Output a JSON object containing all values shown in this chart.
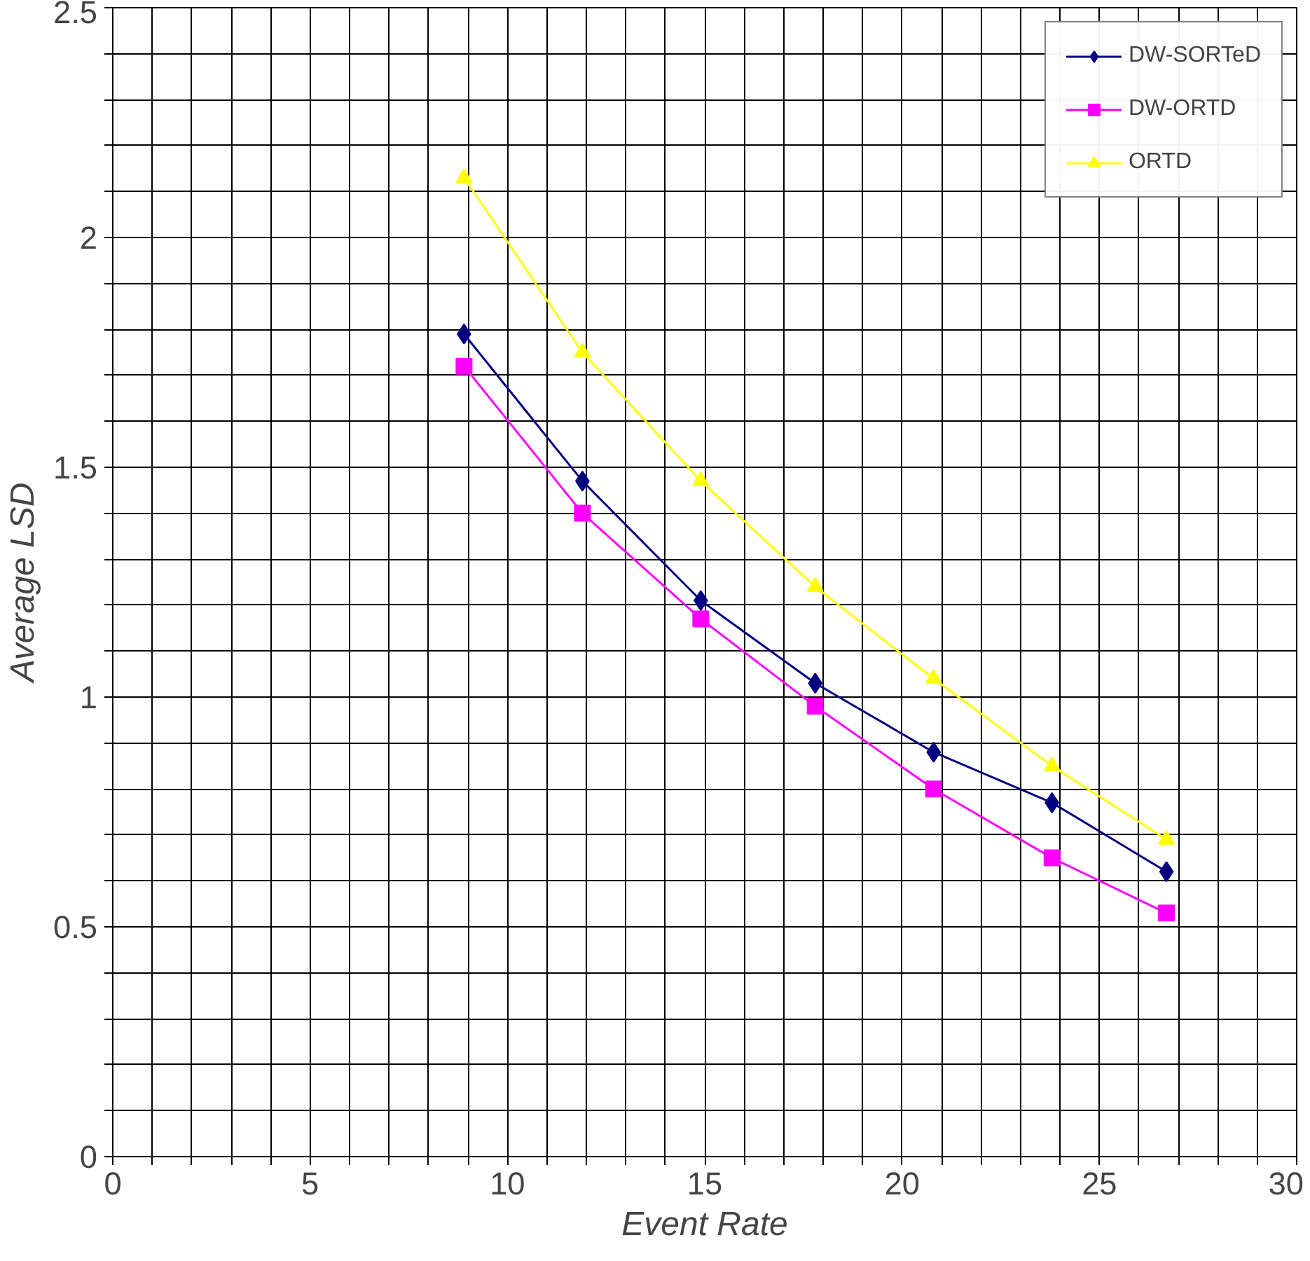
{
  "chart_data": {
    "type": "line",
    "xlabel": "Event Rate",
    "ylabel": "Average LSD",
    "x": [
      8.9,
      11.9,
      14.9,
      17.8,
      20.8,
      23.8,
      26.7
    ],
    "series": [
      {
        "name": "DW-SORTeD",
        "color": "#000080",
        "marker": "diamond",
        "values": [
          1.79,
          1.47,
          1.21,
          1.03,
          0.88,
          0.77,
          0.62
        ]
      },
      {
        "name": "DW-ORTD",
        "color": "#ff00ff",
        "marker": "square",
        "values": [
          1.72,
          1.4,
          1.17,
          0.98,
          0.8,
          0.65,
          0.53
        ]
      },
      {
        "name": "ORTD",
        "color": "#ffff00",
        "marker": "triangle",
        "values": [
          2.13,
          1.75,
          1.47,
          1.24,
          1.04,
          0.85,
          0.69
        ]
      }
    ],
    "xlim": [
      0,
      30
    ],
    "ylim": [
      0,
      2.5
    ],
    "xticks": [
      0,
      {
        "value": 1,
        "label": null
      },
      {
        "value": 2,
        "label": null
      },
      {
        "value": 3,
        "label": null
      },
      {
        "value": 4,
        "label": null
      },
      5,
      {
        "value": 6,
        "label": null
      },
      {
        "value": 7,
        "label": null
      },
      {
        "value": 8,
        "label": null
      },
      {
        "value": 9,
        "label": null
      },
      10,
      {
        "value": 11,
        "label": null
      },
      {
        "value": 12,
        "label": null
      },
      {
        "value": 13,
        "label": null
      },
      {
        "value": 14,
        "label": null
      },
      15,
      {
        "value": 16,
        "label": null
      },
      {
        "value": 17,
        "label": null
      },
      {
        "value": 18,
        "label": null
      },
      {
        "value": 19,
        "label": null
      },
      20,
      {
        "value": 21,
        "label": null
      },
      {
        "value": 22,
        "label": null
      },
      {
        "value": 23,
        "label": null
      },
      {
        "value": 24,
        "label": null
      },
      25,
      {
        "value": 26,
        "label": null
      },
      {
        "value": 27,
        "label": null
      },
      {
        "value": 28,
        "label": null
      },
      {
        "value": 29,
        "label": null
      },
      30
    ],
    "yticks": [
      0,
      {
        "value": 0.1,
        "label": null
      },
      {
        "value": 0.2,
        "label": null
      },
      {
        "value": 0.3,
        "label": null
      },
      {
        "value": 0.4,
        "label": null
      },
      0.5,
      {
        "value": 0.6,
        "label": null
      },
      {
        "value": 0.7,
        "label": null
      },
      {
        "value": 0.8,
        "label": null
      },
      {
        "value": 0.9,
        "label": null
      },
      1,
      {
        "value": 1.1,
        "label": null
      },
      {
        "value": 1.2,
        "label": null
      },
      {
        "value": 1.3,
        "label": null
      },
      {
        "value": 1.4,
        "label": null
      },
      1.5,
      {
        "value": 1.6,
        "label": null
      },
      {
        "value": 1.7,
        "label": null
      },
      {
        "value": 1.8,
        "label": null
      },
      {
        "value": 1.9,
        "label": null
      },
      2,
      {
        "value": 2.1,
        "label": null
      },
      {
        "value": 2.2,
        "label": null
      },
      {
        "value": 2.3,
        "label": null
      },
      {
        "value": 2.4,
        "label": null
      },
      2.5
    ],
    "grid": true,
    "legend": "top right",
    "line_style": "solid"
  }
}
